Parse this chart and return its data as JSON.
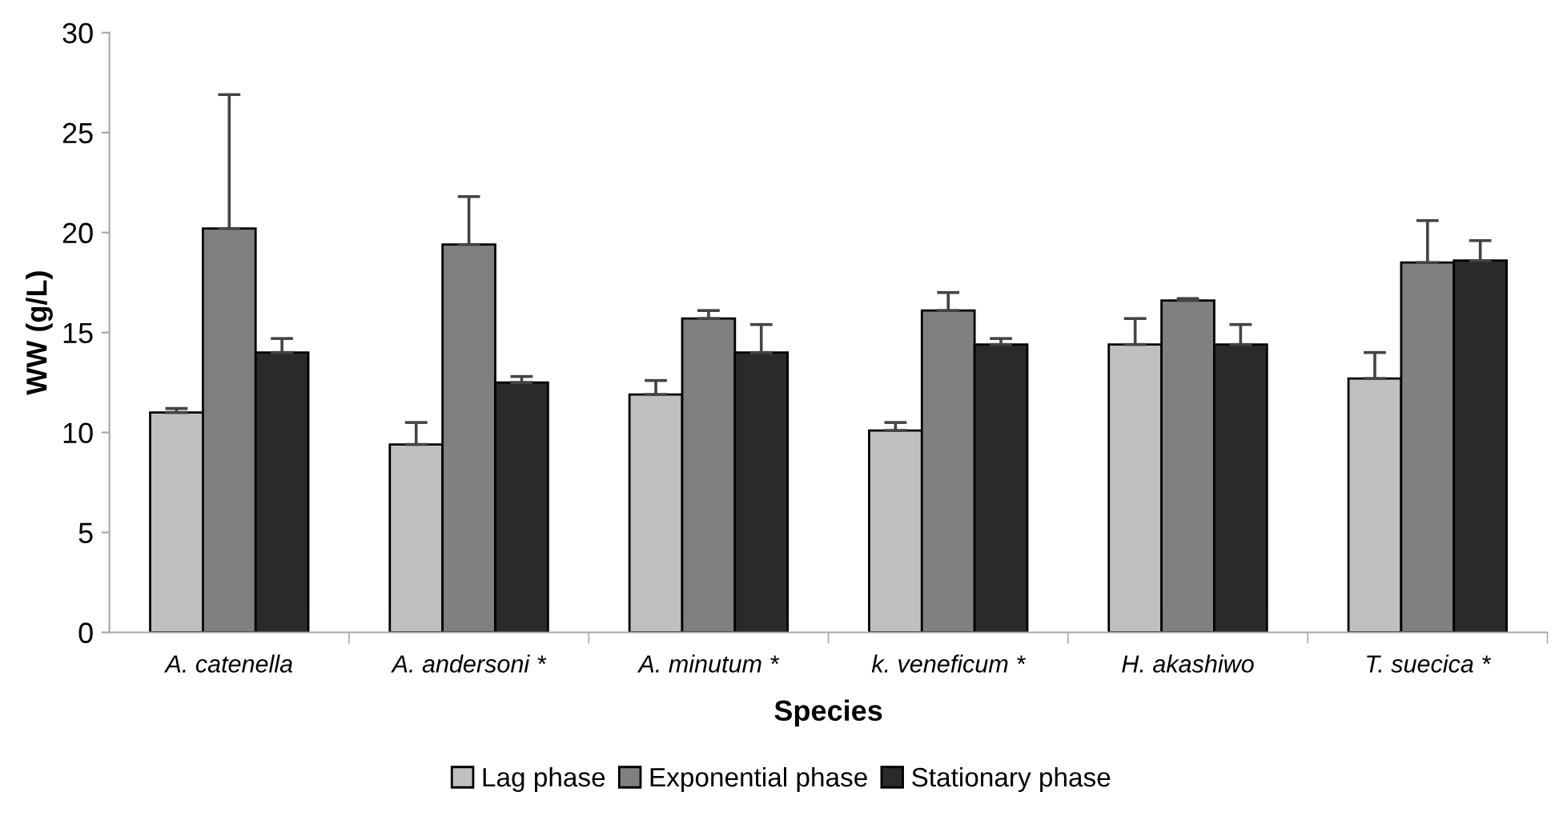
{
  "chart_data": {
    "type": "bar",
    "xlabel": "Species",
    "ylabel": "WW (g/L)",
    "categories": [
      "A. catenella",
      "A. andersoni *",
      "A. minutum *",
      "k. veneficum *",
      "H. akashiwo",
      "T. suecica *"
    ],
    "series": [
      {
        "name": "Lag phase",
        "color": "#c0c0c0",
        "values": [
          11.0,
          9.4,
          11.9,
          10.1,
          14.4,
          12.7
        ],
        "errors": [
          [
            11.0,
            11.2
          ],
          [
            9.4,
            10.5
          ],
          [
            11.9,
            12.6
          ],
          [
            10.1,
            10.5
          ],
          [
            14.4,
            15.7
          ],
          [
            12.7,
            14.0
          ]
        ]
      },
      {
        "name": "Exponential phase",
        "color": "#808080",
        "values": [
          20.2,
          19.4,
          15.7,
          16.1,
          16.6,
          18.5
        ],
        "errors": [
          [
            20.2,
            26.9
          ],
          [
            19.4,
            21.8
          ],
          [
            15.7,
            16.1
          ],
          [
            16.1,
            17.0
          ],
          [
            16.6,
            16.7
          ],
          [
            18.5,
            20.6
          ]
        ]
      },
      {
        "name": "Stationary phase",
        "color": "#2a2a2a",
        "values": [
          14.0,
          12.5,
          14.0,
          14.4,
          14.4,
          18.6
        ],
        "errors": [
          [
            14.0,
            14.7
          ],
          [
            12.5,
            12.8
          ],
          [
            14.0,
            15.4
          ],
          [
            14.4,
            14.7
          ],
          [
            14.4,
            15.4
          ],
          [
            18.6,
            19.6
          ]
        ]
      }
    ],
    "ylim": [
      0,
      30
    ],
    "yticks": [
      0,
      5,
      10,
      15,
      20,
      25,
      30
    ],
    "grid": false,
    "legend": "bottom"
  }
}
